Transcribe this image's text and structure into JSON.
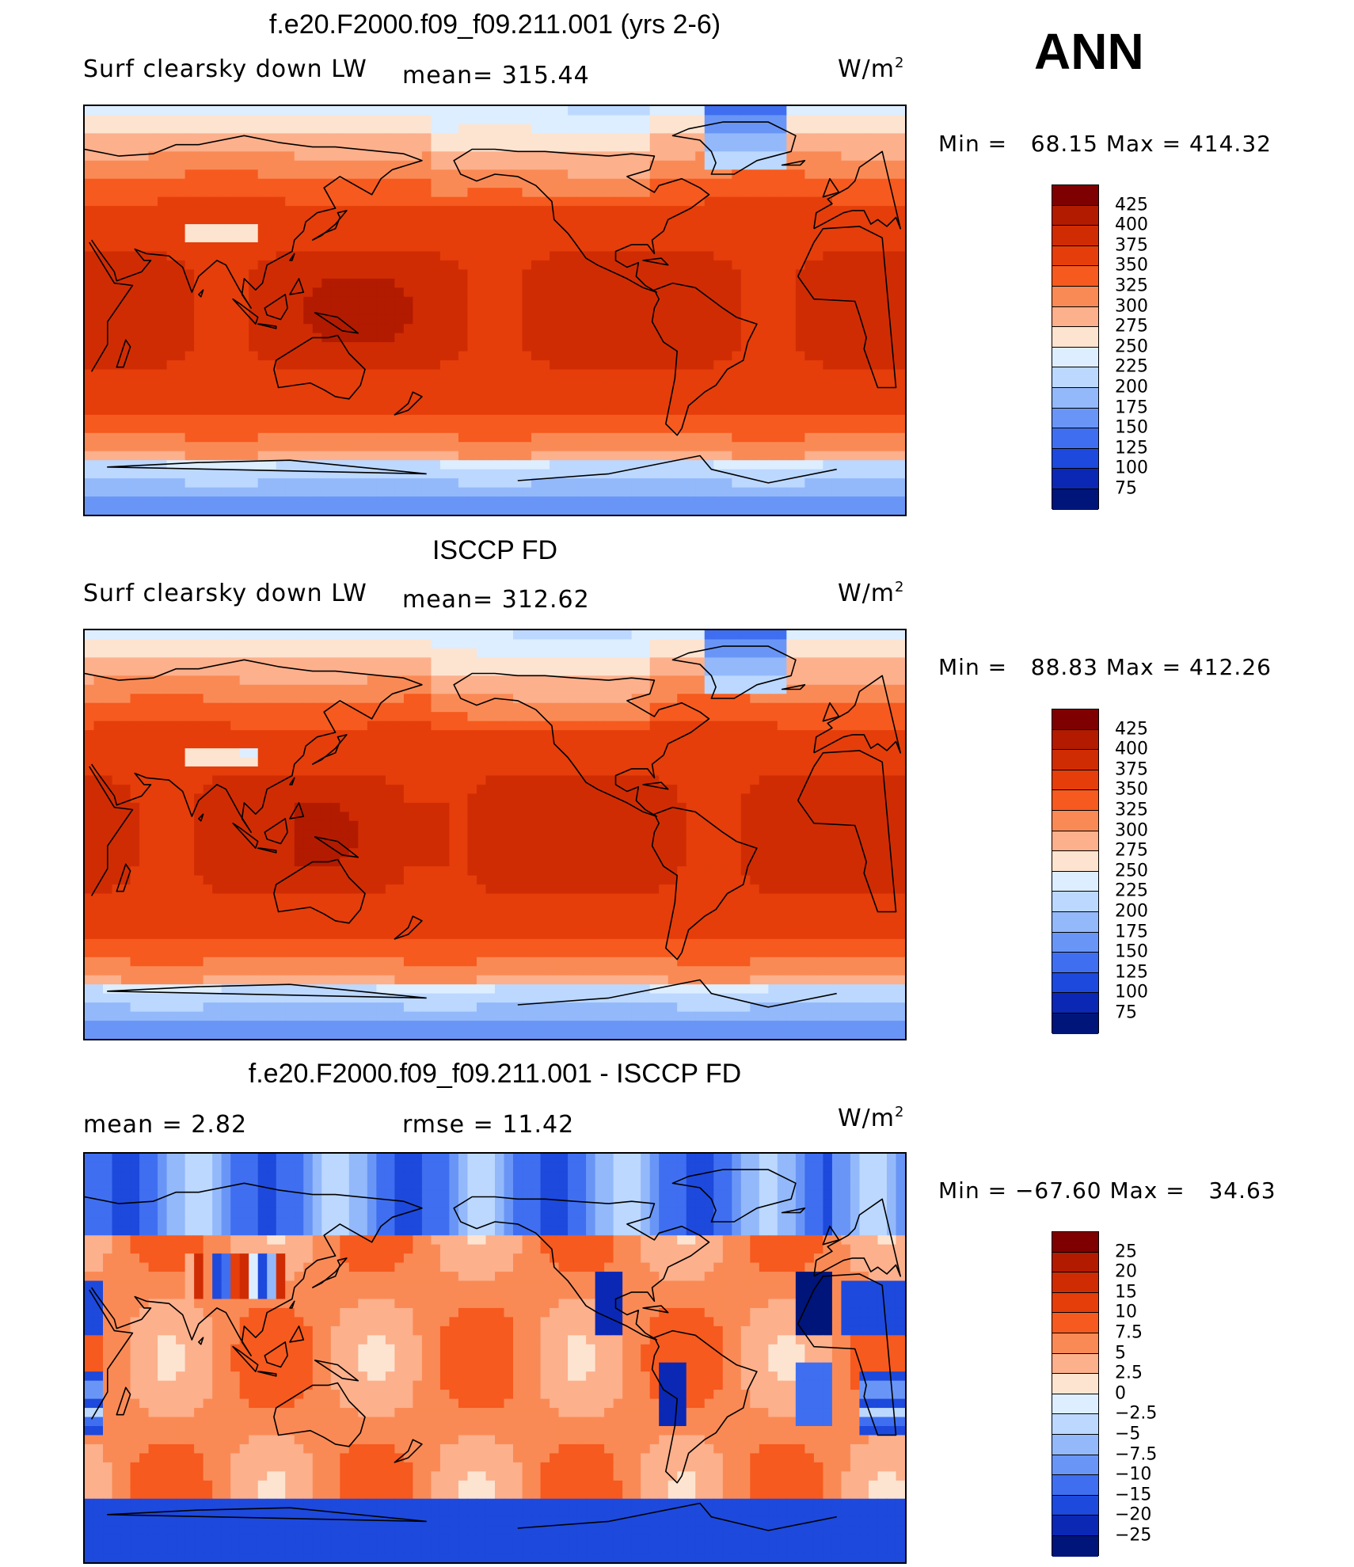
{
  "season": "ANN",
  "panels": [
    {
      "title": "f.e20.F2000.f09_f09.211.001 (yrs 2-6)",
      "left_label": "Surf clearsky down LW",
      "center_label": "mean= 315.44",
      "units_base": "W/m",
      "units_exp": "2",
      "min_label": "Min =",
      "min_value": "68.15",
      "max_label": "Max =",
      "max_value": "414.32",
      "kind": "abs",
      "field": "model"
    },
    {
      "title": "ISCCP FD",
      "left_label": "Surf clearsky down LW",
      "center_label": "mean= 312.62",
      "units_base": "W/m",
      "units_exp": "2",
      "min_label": "Min =",
      "min_value": "88.83",
      "max_label": "Max =",
      "max_value": "412.26",
      "kind": "abs",
      "field": "obs"
    },
    {
      "title": "f.e20.F2000.f09_f09.211.001 - ISCCP FD",
      "left_label": "mean =    2.82",
      "center_label": "rmse =    11.42",
      "units_base": "W/m",
      "units_exp": "2",
      "min_label": "Min =",
      "min_value": "−67.60",
      "max_label": "Max =",
      "max_value": "34.63",
      "kind": "diff",
      "field": "diff"
    }
  ],
  "colorbars": {
    "abs": {
      "labels": [
        "425",
        "400",
        "375",
        "350",
        "325",
        "300",
        "275",
        "250",
        "225",
        "200",
        "175",
        "150",
        "125",
        "100",
        "75"
      ],
      "colors": [
        "#7f0000",
        "#b21b00",
        "#d02c04",
        "#e53e0a",
        "#f65a1e",
        "#fa8a55",
        "#fcb08c",
        "#fde4d0",
        "#dceeff",
        "#bcd8ff",
        "#93b9fb",
        "#6996f6",
        "#3f6ff0",
        "#1d49dc",
        "#0b28b4",
        "#00157a"
      ]
    },
    "diff": {
      "labels": [
        "25",
        "20",
        "15",
        "10",
        "7.5",
        "5",
        "2.5",
        "0",
        "−2.5",
        "−5",
        "−7.5",
        "−10",
        "−15",
        "−20",
        "−25"
      ],
      "colors": [
        "#7f0000",
        "#b21b00",
        "#d02c04",
        "#e53e0a",
        "#f65a1e",
        "#fa8a55",
        "#fcb08c",
        "#fde4d0",
        "#dceeff",
        "#bcd8ff",
        "#93b9fb",
        "#6996f6",
        "#3f6ff0",
        "#1d49dc",
        "#0b28b4",
        "#00157a"
      ]
    }
  }
}
